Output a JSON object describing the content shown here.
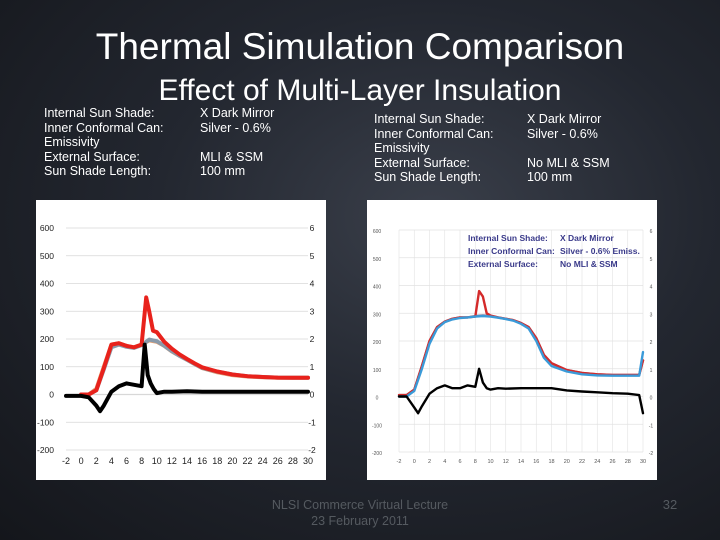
{
  "slide": {
    "title": "Thermal Simulation Comparison",
    "subtitle": "Effect of Multi-Layer Insulation",
    "footer_line1": "NLSI Commerce Virtual Lecture",
    "footer_line2": "23 February 2011",
    "page_number": "32"
  },
  "left_params": [
    {
      "label": "Internal Sun Shade:",
      "value": "X Dark Mirror"
    },
    {
      "label": "Inner Conformal Can:",
      "value": "Silver - 0.6%"
    },
    {
      "label": "Emissivity",
      "value": ""
    },
    {
      "label": "External Surface:",
      "value": "MLI & SSM"
    },
    {
      "label": "Sun Shade Length:",
      "value": "100 mm"
    }
  ],
  "right_params": [
    {
      "label": "Internal Sun Shade:",
      "value": "X Dark Mirror"
    },
    {
      "label": "Inner Conformal Can:",
      "value": "Silver - 0.6%"
    },
    {
      "label": "Emissivity",
      "value": ""
    },
    {
      "label": "External Surface:",
      "value": "No MLI & SSM"
    },
    {
      "label": "Sun Shade Length:",
      "value": "100 mm"
    }
  ],
  "chart_data": [
    {
      "type": "line",
      "xlim": [
        -2,
        30
      ],
      "ylim": [
        -200,
        600
      ],
      "y2lim": [
        -2,
        6
      ],
      "x_ticks": [
        "-2",
        "0",
        "2",
        "4",
        "6",
        "8",
        "10",
        "12",
        "14",
        "16",
        "18",
        "20",
        "22",
        "24",
        "26",
        "28",
        "30"
      ],
      "y_ticks": [
        "600",
        "500",
        "400",
        "300",
        "200",
        "100",
        "0",
        "-100",
        "-200"
      ],
      "y2_ticks": [
        "6",
        "5",
        "4",
        "3",
        "2",
        "1",
        "0",
        "-1",
        "-2"
      ],
      "grid": true,
      "colors": [
        "#e8221c",
        "#e8a070",
        "#8a9aaa",
        "#000000"
      ],
      "series": [
        {
          "color": "#e8a070",
          "x": [
            0,
            1,
            2,
            3,
            4,
            5,
            6,
            7,
            8,
            9,
            10,
            11,
            12,
            13,
            14,
            15,
            16,
            18,
            20,
            22,
            24,
            26,
            28,
            30
          ],
          "y": [
            0,
            0,
            20,
            100,
            180,
            185,
            175,
            170,
            180,
            195,
            190,
            175,
            155,
            140,
            125,
            110,
            95,
            80,
            70,
            65,
            62,
            60,
            60,
            60
          ]
        },
        {
          "color": "#8a9aaa",
          "x": [
            0,
            1,
            2,
            3,
            4,
            5,
            6,
            7,
            8,
            9,
            10,
            11,
            12,
            13,
            14,
            15,
            16,
            18,
            20,
            22,
            24,
            26,
            28,
            30
          ],
          "y": [
            0,
            0,
            15,
            90,
            170,
            180,
            172,
            168,
            178,
            198,
            192,
            176,
            156,
            140,
            125,
            110,
            96,
            82,
            72,
            66,
            63,
            61,
            60,
            60
          ]
        },
        {
          "color": "#e8221c",
          "x": [
            0,
            1,
            2,
            3,
            4,
            5,
            6,
            7,
            8,
            8.6,
            9,
            9.5,
            10,
            11,
            12,
            13,
            14,
            15,
            16,
            18,
            20,
            22,
            24,
            26,
            28,
            30
          ],
          "y": [
            0,
            0,
            15,
            95,
            180,
            185,
            175,
            170,
            180,
            350,
            300,
            230,
            225,
            190,
            165,
            145,
            128,
            112,
            98,
            83,
            72,
            66,
            63,
            61,
            60,
            60
          ]
        },
        {
          "color": "#000000",
          "x": [
            -2,
            0,
            1,
            2,
            2.5,
            3,
            4,
            5,
            6,
            7,
            8,
            8.4,
            8.8,
            9.2,
            9.6,
            10,
            11,
            12,
            14,
            16,
            20,
            24,
            28,
            30
          ],
          "y": [
            -5,
            -5,
            -10,
            -40,
            -60,
            -40,
            10,
            30,
            40,
            35,
            30,
            180,
            70,
            40,
            20,
            5,
            10,
            10,
            12,
            10,
            10,
            10,
            10,
            10
          ]
        }
      ]
    },
    {
      "type": "line",
      "xlim": [
        -2,
        30
      ],
      "ylim": [
        -200,
        600
      ],
      "y2lim": [
        -2,
        6
      ],
      "x_ticks": [
        "-2",
        "0",
        "2",
        "4",
        "6",
        "8",
        "10",
        "12",
        "14",
        "16",
        "18",
        "20",
        "22",
        "24",
        "26",
        "28",
        "30"
      ],
      "y_ticks": [
        "600",
        "500",
        "400",
        "300",
        "200",
        "100",
        "0",
        "-100",
        "-200"
      ],
      "y2_ticks": [
        "6",
        "5",
        "4",
        "3",
        "2",
        "1",
        "0",
        "-1",
        "-2"
      ],
      "grid": true,
      "legend_lines": [
        {
          "label": "Internal Sun Shade:",
          "value": "X Dark Mirror"
        },
        {
          "label": "Inner Conformal Can:",
          "value": "Silver - 0.6% Emiss."
        },
        {
          "label": "External Surface:",
          "value": "No MLI & SSM"
        }
      ],
      "legend_position": "top-right",
      "colors": [
        "#d42a2a",
        "#3a9ad8",
        "#8a7a9a",
        "#000000"
      ],
      "series": [
        {
          "color": "#8a7a9a",
          "x": [
            -2,
            -1,
            0,
            1,
            2,
            3,
            4,
            5,
            6,
            7,
            8,
            9,
            10,
            11,
            12,
            13,
            14,
            15,
            16,
            17,
            18,
            20,
            22,
            24,
            26,
            28,
            29.5,
            30
          ],
          "y": [
            5,
            5,
            25,
            110,
            200,
            250,
            270,
            280,
            285,
            285,
            290,
            292,
            290,
            285,
            280,
            275,
            265,
            250,
            210,
            150,
            120,
            95,
            85,
            80,
            78,
            78,
            78,
            130
          ]
        },
        {
          "color": "#d42a2a",
          "x": [
            -2,
            -1,
            0,
            1,
            2,
            3,
            4,
            5,
            6,
            7,
            8,
            8.5,
            9,
            9.5,
            10,
            11,
            12,
            13,
            14,
            15,
            16,
            17,
            18,
            20,
            22,
            24,
            26,
            28,
            29.5,
            30
          ],
          "y": [
            5,
            5,
            25,
            110,
            200,
            250,
            270,
            280,
            285,
            285,
            288,
            380,
            360,
            300,
            292,
            285,
            280,
            275,
            265,
            250,
            210,
            150,
            120,
            95,
            85,
            80,
            78,
            78,
            78,
            130
          ]
        },
        {
          "color": "#3a9ad8",
          "x": [
            -2,
            -1,
            0,
            1,
            2,
            3,
            4,
            5,
            6,
            7,
            8,
            9,
            10,
            11,
            12,
            13,
            14,
            15,
            16,
            17,
            18,
            20,
            22,
            24,
            26,
            28,
            29.5,
            30
          ],
          "y": [
            0,
            0,
            20,
            100,
            190,
            245,
            268,
            278,
            283,
            285,
            288,
            290,
            288,
            284,
            279,
            273,
            262,
            245,
            200,
            140,
            110,
            90,
            80,
            76,
            75,
            75,
            75,
            160
          ]
        },
        {
          "color": "#000000",
          "x": [
            -2,
            -1,
            0,
            0.5,
            1,
            2,
            3,
            4,
            5,
            6,
            7,
            8,
            8.5,
            9,
            9.5,
            10,
            11,
            12,
            14,
            16,
            18,
            20,
            22,
            24,
            26,
            28,
            29.5,
            30
          ],
          "y": [
            0,
            0,
            -40,
            -60,
            -35,
            10,
            30,
            40,
            30,
            30,
            40,
            35,
            100,
            50,
            30,
            25,
            30,
            28,
            30,
            30,
            30,
            22,
            18,
            15,
            12,
            10,
            5,
            -60
          ]
        }
      ]
    }
  ]
}
